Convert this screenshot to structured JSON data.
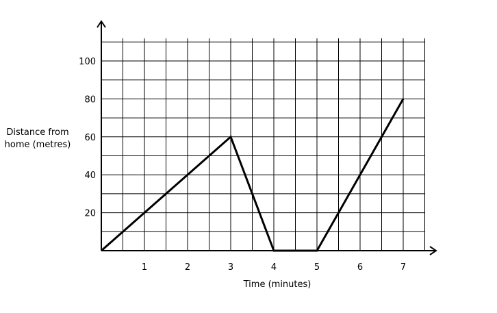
{
  "chart_data": {
    "type": "line",
    "title": "",
    "xlabel": "Time (minutes)",
    "ylabel": [
      "Distance from",
      "home (metres)"
    ],
    "x_ticks": [
      "1",
      "2",
      "3",
      "4",
      "5",
      "6",
      "7"
    ],
    "y_ticks": [
      "20",
      "40",
      "60",
      "80",
      "100"
    ],
    "xlim": [
      0,
      7.5
    ],
    "ylim": [
      0,
      110
    ],
    "grid": true,
    "series": [
      {
        "x": [
          0,
          3,
          4,
          5,
          7
        ],
        "y": [
          0,
          60,
          0,
          0,
          80
        ],
        "color": "#000000"
      }
    ]
  }
}
